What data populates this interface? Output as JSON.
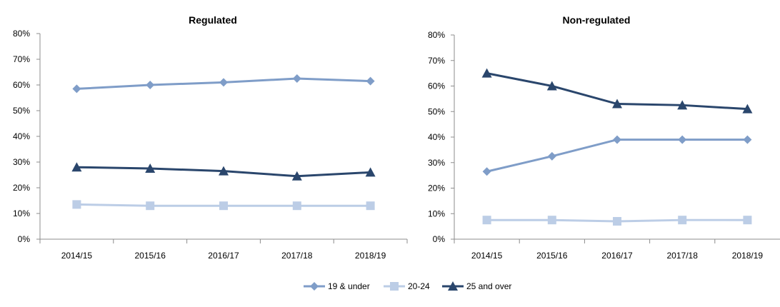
{
  "colors": {
    "under19": "#7f9dc8",
    "age20_24": "#bccde6",
    "over25": "#2a466c",
    "axis": "#8c8c8c",
    "grid": "#d9d9d9",
    "text": "#000000"
  },
  "legend": {
    "items": [
      {
        "label": "19 & under",
        "marker": "diamond",
        "color": "#7f9dc8"
      },
      {
        "label": "20-24",
        "marker": "square",
        "color": "#bccde6"
      },
      {
        "label": "25 and over",
        "marker": "triangle",
        "color": "#2a466c"
      }
    ]
  },
  "chart_data": [
    {
      "type": "line",
      "title": "Regulated",
      "categories": [
        "2014/15",
        "2015/16",
        "2016/17",
        "2017/18",
        "2018/19"
      ],
      "ylim": [
        0,
        80
      ],
      "yticks": [
        "0%",
        "10%",
        "20%",
        "30%",
        "40%",
        "50%",
        "60%",
        "70%",
        "80%"
      ],
      "grid": false,
      "series": [
        {
          "name": "19 & under",
          "marker": "diamond",
          "values": [
            58.5,
            60,
            61,
            62.5,
            61.5
          ]
        },
        {
          "name": "20-24",
          "marker": "square",
          "values": [
            13.5,
            13,
            13,
            13,
            13
          ]
        },
        {
          "name": "25 and over",
          "marker": "triangle",
          "values": [
            28,
            27.5,
            26.5,
            24.5,
            26
          ]
        }
      ]
    },
    {
      "type": "line",
      "title": "Non-regulated",
      "categories": [
        "2014/15",
        "2015/16",
        "2016/17",
        "2017/18",
        "2018/19"
      ],
      "ylim": [
        0,
        80
      ],
      "yticks": [
        "0%",
        "10%",
        "20%",
        "30%",
        "40%",
        "50%",
        "60%",
        "70%",
        "80%"
      ],
      "grid": false,
      "series": [
        {
          "name": "19 & under",
          "marker": "diamond",
          "values": [
            26.5,
            32.5,
            39,
            39,
            39
          ]
        },
        {
          "name": "20-24",
          "marker": "square",
          "values": [
            7.5,
            7.5,
            7,
            7.5,
            7.5
          ]
        },
        {
          "name": "25 and over",
          "marker": "triangle",
          "values": [
            65,
            60,
            53,
            52.5,
            51
          ]
        }
      ]
    }
  ]
}
